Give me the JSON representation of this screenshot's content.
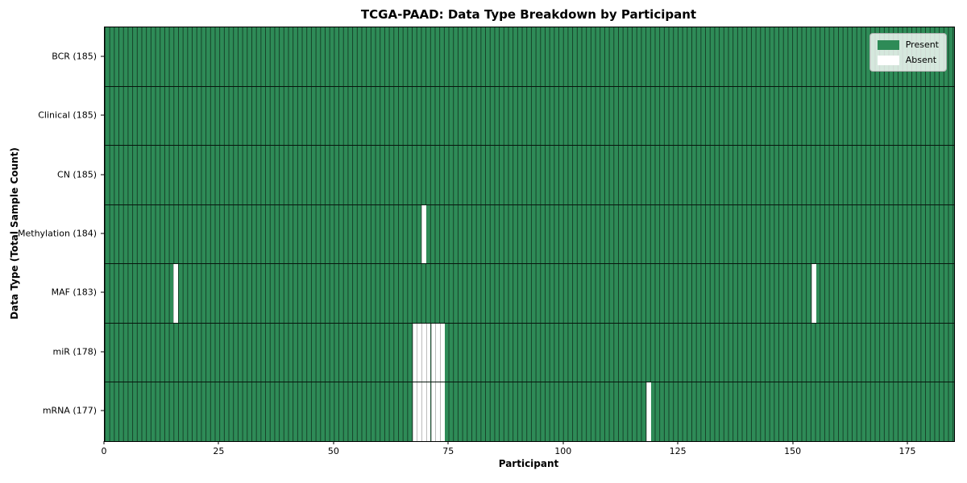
{
  "chart_data": {
    "type": "heatmap",
    "title": "TCGA-PAAD: Data Type Breakdown by Participant",
    "xlabel": "Participant",
    "ylabel": "Data Type (Total Sample Count)",
    "n_participants": 185,
    "xlim": [
      0,
      185
    ],
    "x_ticks": [
      0,
      25,
      50,
      75,
      100,
      125,
      150,
      175
    ],
    "grid": true,
    "legend_position": "upper right",
    "legend": [
      {
        "label": "Present",
        "color": "#2e8b57"
      },
      {
        "label": "Absent",
        "color": "#ffffff"
      }
    ],
    "rows": [
      {
        "data_type": "BCR",
        "label": "BCR (185)",
        "present_count": 185,
        "absent_participants": []
      },
      {
        "data_type": "Clinical",
        "label": "Clinical (185)",
        "present_count": 185,
        "absent_participants": []
      },
      {
        "data_type": "CN",
        "label": "CN (185)",
        "present_count": 185,
        "absent_participants": []
      },
      {
        "data_type": "Methylation",
        "label": "Methylation (184)",
        "present_count": 184,
        "absent_participants": [
          69
        ]
      },
      {
        "data_type": "MAF",
        "label": "MAF (183)",
        "present_count": 183,
        "absent_participants": [
          15,
          154
        ]
      },
      {
        "data_type": "miR",
        "label": "miR (178)",
        "present_count": 178,
        "absent_participants": [
          67,
          68,
          69,
          70,
          71,
          72,
          73
        ]
      },
      {
        "data_type": "mRNA",
        "label": "mRNA (177)",
        "present_count": 177,
        "absent_participants": [
          67,
          68,
          69,
          70,
          71,
          72,
          73,
          118
        ]
      }
    ],
    "colors": {
      "present": "#2e8b57",
      "absent": "#ffffff",
      "grid_line": "rgba(0,0,0,0.55)",
      "absent_grid_line": "#bcbcbc",
      "row_separator": "rgba(0,0,0,0.85)",
      "frame": "#000000"
    }
  }
}
